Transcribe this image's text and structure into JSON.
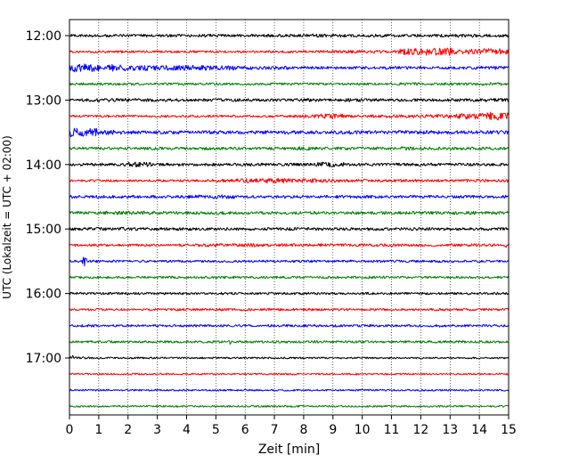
{
  "chart_data": {
    "type": "line",
    "title": "",
    "xlabel": "Zeit  [min]",
    "ylabel": "UTC (Lokalzeit = UTC + 02:00)",
    "xlim": [
      0,
      15
    ],
    "x_ticks": [
      0,
      1,
      2,
      3,
      4,
      5,
      6,
      7,
      8,
      9,
      10,
      11,
      12,
      13,
      14,
      15
    ],
    "x_tick_labels": [
      "0",
      "1",
      "2",
      "3",
      "4",
      "5",
      "6",
      "7",
      "8",
      "9",
      "10",
      "11",
      "12",
      "13",
      "14",
      "15"
    ],
    "y_tick_labels": [
      "12:00",
      "13:00",
      "14:00",
      "15:00",
      "16:00",
      "17:00"
    ],
    "grid": "vertical dotted",
    "rows_per_hour": 4,
    "minutes_per_row": 15,
    "row_color_cycle": [
      "#000000",
      "#ff0000",
      "#0000ff",
      "#008000"
    ],
    "series": [
      {
        "start": "12:00",
        "color": "#000000",
        "envelope": [
          0.5,
          0.5,
          0.5,
          0.5,
          0.5,
          0.5,
          0.5,
          0.5,
          0.5,
          0.6,
          0.5,
          0.5,
          0.5,
          0.5,
          0.6,
          0.5
        ],
        "events": [
          {
            "t": 8.3,
            "a": 0.7
          }
        ]
      },
      {
        "start": "12:15",
        "color": "#ff0000",
        "envelope": [
          0.4,
          0.4,
          0.4,
          0.4,
          0.4,
          0.4,
          0.4,
          0.4,
          0.4,
          0.5,
          0.5,
          0.5,
          1.1,
          1.3,
          0.9,
          1.1
        ],
        "events": []
      },
      {
        "start": "12:30",
        "color": "#0000ff",
        "envelope": [
          1.4,
          1.2,
          1.0,
          0.9,
          0.9,
          0.8,
          0.6,
          0.6,
          0.5,
          0.5,
          0.5,
          0.5,
          0.5,
          0.5,
          0.5,
          0.6
        ],
        "events": []
      },
      {
        "start": "12:45",
        "color": "#008000",
        "envelope": [
          0.4,
          0.4,
          0.4,
          0.4,
          0.4,
          0.4,
          0.4,
          0.4,
          0.4,
          0.4,
          0.4,
          0.4,
          0.5,
          0.4,
          0.4,
          0.5
        ],
        "events": []
      },
      {
        "start": "13:00",
        "color": "#000000",
        "envelope": [
          0.5,
          0.6,
          0.6,
          0.5,
          0.5,
          0.5,
          0.5,
          0.5,
          0.6,
          0.5,
          0.6,
          0.5,
          0.5,
          0.5,
          0.5,
          0.6
        ],
        "events": [
          {
            "t": 14.8,
            "a": 0.8
          }
        ]
      },
      {
        "start": "13:15",
        "color": "#ff0000",
        "envelope": [
          0.4,
          0.4,
          0.4,
          0.4,
          0.4,
          0.4,
          0.4,
          0.4,
          0.5,
          0.8,
          0.5,
          0.5,
          0.5,
          0.6,
          1.0,
          1.4
        ],
        "events": []
      },
      {
        "start": "13:30",
        "color": "#0000ff",
        "envelope": [
          1.4,
          0.8,
          0.6,
          0.6,
          0.6,
          0.6,
          0.6,
          0.6,
          0.6,
          0.6,
          0.6,
          0.6,
          0.6,
          0.6,
          0.6,
          0.6
        ],
        "events": [
          {
            "t": 0.05,
            "a": 1.8
          }
        ]
      },
      {
        "start": "13:45",
        "color": "#008000",
        "envelope": [
          0.5,
          0.5,
          0.5,
          0.5,
          0.5,
          0.5,
          0.5,
          0.5,
          0.6,
          0.5,
          0.5,
          0.5,
          0.6,
          0.5,
          0.5,
          0.5
        ],
        "events": []
      },
      {
        "start": "14:00",
        "color": "#000000",
        "envelope": [
          0.5,
          0.5,
          0.9,
          0.5,
          0.5,
          0.5,
          0.5,
          0.5,
          0.5,
          0.8,
          0.5,
          0.5,
          0.5,
          0.5,
          0.5,
          0.5
        ],
        "events": []
      },
      {
        "start": "14:15",
        "color": "#ff0000",
        "envelope": [
          0.4,
          0.4,
          0.4,
          0.4,
          0.4,
          0.5,
          0.8,
          0.9,
          0.7,
          0.6,
          0.5,
          0.5,
          0.5,
          0.5,
          0.5,
          0.5
        ],
        "events": []
      },
      {
        "start": "14:30",
        "color": "#0000ff",
        "envelope": [
          0.5,
          0.5,
          0.5,
          0.5,
          0.6,
          0.7,
          0.5,
          0.5,
          0.6,
          0.5,
          0.5,
          0.5,
          0.5,
          0.5,
          0.5,
          0.5
        ],
        "events": []
      },
      {
        "start": "14:45",
        "color": "#008000",
        "envelope": [
          0.5,
          0.6,
          0.6,
          0.5,
          0.5,
          0.6,
          0.5,
          0.5,
          0.5,
          0.5,
          0.5,
          0.5,
          0.5,
          0.5,
          0.6,
          0.5
        ],
        "events": []
      },
      {
        "start": "15:00",
        "color": "#000000",
        "envelope": [
          0.5,
          0.6,
          0.5,
          0.5,
          0.5,
          0.5,
          0.5,
          0.5,
          0.5,
          0.5,
          0.5,
          0.5,
          0.5,
          0.5,
          0.5,
          0.5
        ],
        "events": []
      },
      {
        "start": "15:15",
        "color": "#ff0000",
        "envelope": [
          0.4,
          0.4,
          0.4,
          0.4,
          0.5,
          0.6,
          0.6,
          0.5,
          0.5,
          0.5,
          0.5,
          0.5,
          0.5,
          0.5,
          0.5,
          0.5
        ],
        "events": [
          {
            "t": 14.9,
            "a": 1.0
          }
        ]
      },
      {
        "start": "15:30",
        "color": "#0000ff",
        "envelope": [
          0.4,
          0.4,
          0.4,
          0.4,
          0.4,
          0.4,
          0.4,
          0.4,
          0.4,
          0.4,
          0.4,
          0.4,
          0.4,
          0.4,
          0.4,
          0.4
        ],
        "events": [
          {
            "t": 0.5,
            "a": 2.8
          },
          {
            "t": 0.9,
            "a": 1.0
          }
        ]
      },
      {
        "start": "15:45",
        "color": "#008000",
        "envelope": [
          0.4,
          0.4,
          0.4,
          0.4,
          0.4,
          0.4,
          0.4,
          0.4,
          0.4,
          0.4,
          0.4,
          0.4,
          0.4,
          0.4,
          0.4,
          0.4
        ],
        "events": [
          {
            "t": 10.2,
            "a": 0.9
          }
        ]
      },
      {
        "start": "16:00",
        "color": "#000000",
        "envelope": [
          0.4,
          0.4,
          0.4,
          0.4,
          0.4,
          0.4,
          0.4,
          0.4,
          0.4,
          0.4,
          0.4,
          0.4,
          0.4,
          0.4,
          0.4,
          0.4
        ],
        "events": []
      },
      {
        "start": "16:15",
        "color": "#ff0000",
        "envelope": [
          0.4,
          0.4,
          0.4,
          0.4,
          0.4,
          0.4,
          0.4,
          0.4,
          0.4,
          0.4,
          0.4,
          0.4,
          0.4,
          0.4,
          0.4,
          0.4
        ],
        "events": []
      },
      {
        "start": "16:30",
        "color": "#0000ff",
        "envelope": [
          0.4,
          0.4,
          0.4,
          0.4,
          0.4,
          0.4,
          0.4,
          0.4,
          0.4,
          0.4,
          0.4,
          0.4,
          0.4,
          0.4,
          0.4,
          0.4
        ],
        "events": [
          {
            "t": 12.6,
            "a": 1.2
          }
        ]
      },
      {
        "start": "16:45",
        "color": "#008000",
        "envelope": [
          0.4,
          0.4,
          0.4,
          0.4,
          0.4,
          0.4,
          0.4,
          0.4,
          0.4,
          0.4,
          0.4,
          0.4,
          0.4,
          0.4,
          0.4,
          0.4
        ],
        "events": [
          {
            "t": 5.5,
            "a": 1.0
          }
        ]
      },
      {
        "start": "17:00",
        "color": "#000000",
        "envelope": [
          0.4,
          0.3,
          0.3,
          0.3,
          0.3,
          0.3,
          0.3,
          0.3,
          0.3,
          0.3,
          0.3,
          0.3,
          0.3,
          0.3,
          0.3,
          0.3
        ],
        "events": [
          {
            "t": 0.1,
            "a": 0.9
          }
        ]
      },
      {
        "start": "17:15",
        "color": "#ff0000",
        "envelope": [
          0.3,
          0.3,
          0.3,
          0.3,
          0.3,
          0.3,
          0.3,
          0.3,
          0.3,
          0.3,
          0.3,
          0.3,
          0.3,
          0.3,
          0.3,
          0.3
        ],
        "events": []
      },
      {
        "start": "17:30",
        "color": "#0000ff",
        "envelope": [
          0.3,
          0.3,
          0.3,
          0.3,
          0.3,
          0.3,
          0.3,
          0.3,
          0.3,
          0.3,
          0.3,
          0.3,
          0.3,
          0.3,
          0.3,
          0.3
        ],
        "events": []
      },
      {
        "start": "17:45",
        "color": "#008000",
        "envelope": [
          0.3,
          0.3,
          0.3,
          0.3,
          0.3,
          0.3,
          0.3,
          0.3,
          0.3,
          0.3,
          0.3,
          0.3,
          0.3,
          0.3,
          0.3,
          0.3
        ],
        "events": []
      }
    ]
  }
}
